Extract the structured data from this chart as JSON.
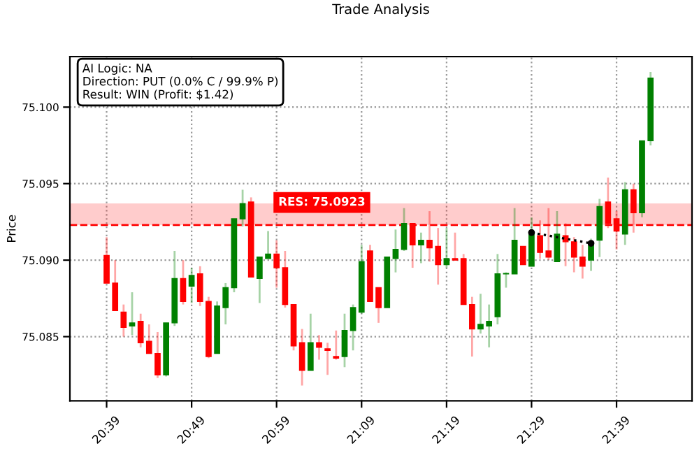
{
  "chart_data": {
    "type": "candlestick",
    "title": "Trade Analysis",
    "ylabel": "Price",
    "x": [
      20.65,
      20.6667,
      20.6833,
      20.7,
      20.7167,
      20.7333,
      20.75,
      20.7667,
      20.7833,
      20.8,
      20.8167,
      20.8333,
      20.85,
      20.8667,
      20.8833,
      20.9,
      20.9167,
      20.9333,
      20.95,
      20.9667,
      20.9833,
      21.0,
      21.0167,
      21.0333,
      21.05,
      21.0667,
      21.0833,
      21.1,
      21.1167,
      21.1333,
      21.15,
      21.1667,
      21.1833,
      21.2,
      21.2167,
      21.2333,
      21.25,
      21.2667,
      21.2833,
      21.3,
      21.3167,
      21.3333,
      21.35,
      21.3667,
      21.3833,
      21.4,
      21.4167,
      21.4333,
      21.45,
      21.4667,
      21.4833,
      21.5,
      21.5167,
      21.5333,
      21.55,
      21.5667,
      21.5833,
      21.6,
      21.6167,
      21.6333,
      21.65,
      21.6667,
      21.6833,
      21.7,
      21.7167
    ],
    "ohlc": [
      [
        75.0903,
        75.0915,
        75.0885,
        75.0885
      ],
      [
        75.0885,
        75.09,
        75.0867,
        75.0867
      ],
      [
        75.0866,
        75.0871,
        75.085,
        75.0856
      ],
      [
        75.0857,
        75.0879,
        75.0851,
        75.0859
      ],
      [
        75.086,
        75.0865,
        75.0843,
        75.0846
      ],
      [
        75.0847,
        75.0858,
        75.0839,
        75.0839
      ],
      [
        75.0839,
        75.0853,
        75.0823,
        75.0825
      ],
      [
        75.0825,
        75.0859,
        75.0824,
        75.0859
      ],
      [
        75.0859,
        75.0906,
        75.0857,
        75.0888
      ],
      [
        75.0888,
        75.09,
        75.0871,
        75.0873
      ],
      [
        75.0883,
        75.0895,
        75.0872,
        75.089
      ],
      [
        75.0891,
        75.0896,
        75.087,
        75.0873
      ],
      [
        75.0873,
        75.0876,
        75.0836,
        75.0837
      ],
      [
        75.0839,
        75.0873,
        75.0839,
        75.087
      ],
      [
        75.0869,
        75.0885,
        75.0858,
        75.0882
      ],
      [
        75.0882,
        75.0927,
        75.0879,
        75.0927
      ],
      [
        75.0927,
        75.0946,
        75.0922,
        75.0937
      ],
      [
        75.0938,
        75.0941,
        75.0889,
        75.0889
      ],
      [
        75.0888,
        75.0902,
        75.0872,
        75.0902
      ],
      [
        75.0901,
        75.0919,
        75.0901,
        75.0904
      ],
      [
        75.0904,
        75.0913,
        75.0882,
        75.0895
      ],
      [
        75.0895,
        75.0906,
        75.0869,
        75.0871
      ],
      [
        75.0871,
        75.0871,
        75.0841,
        75.0844
      ],
      [
        75.0846,
        75.0855,
        75.0818,
        75.0828
      ],
      [
        75.0828,
        75.0865,
        75.0828,
        75.0846
      ],
      [
        75.0846,
        75.0851,
        75.0835,
        75.0843
      ],
      [
        75.0842,
        75.0846,
        75.0825,
        75.0841
      ],
      [
        75.0837,
        75.0854,
        75.0835,
        75.0836
      ],
      [
        75.0837,
        75.0865,
        75.083,
        75.0854
      ],
      [
        75.0854,
        75.0871,
        75.0841,
        75.0869
      ],
      [
        75.0866,
        75.091,
        75.0865,
        75.0899
      ],
      [
        75.0906,
        75.091,
        75.0873,
        75.0873
      ],
      [
        75.0882,
        75.0882,
        75.0859,
        75.0869
      ],
      [
        75.0869,
        75.0902,
        75.0869,
        75.0902
      ],
      [
        75.0901,
        75.092,
        75.0892,
        75.0907
      ],
      [
        75.0907,
        75.0934,
        75.0906,
        75.0924
      ],
      [
        75.0924,
        75.0924,
        75.0895,
        75.091
      ],
      [
        75.091,
        75.0918,
        75.0898,
        75.0913
      ],
      [
        75.0913,
        75.0932,
        75.0899,
        75.0908
      ],
      [
        75.0909,
        75.0921,
        75.0884,
        75.0897
      ],
      [
        75.0897,
        75.0921,
        75.0895,
        75.0901
      ],
      [
        75.0901,
        75.0918,
        75.09,
        75.09
      ],
      [
        75.0901,
        75.0904,
        75.0871,
        75.0871
      ],
      [
        75.0871,
        75.0876,
        75.0837,
        75.0855
      ],
      [
        75.0855,
        75.0878,
        75.0852,
        75.0858
      ],
      [
        75.0857,
        75.0871,
        75.0843,
        75.086
      ],
      [
        75.0863,
        75.0904,
        75.0858,
        75.0891
      ],
      [
        75.0891,
        75.0892,
        75.0882,
        75.0891
      ],
      [
        75.0891,
        75.0934,
        75.0891,
        75.0913
      ],
      [
        75.0909,
        75.0909,
        75.0897,
        75.0897
      ],
      [
        75.0896,
        75.0928,
        75.0896,
        75.0918
      ],
      [
        75.0916,
        75.0926,
        75.0901,
        75.0905
      ],
      [
        75.0906,
        75.0934,
        75.09,
        75.0902
      ],
      [
        75.0899,
        75.0932,
        75.0899,
        75.0917
      ],
      [
        75.0916,
        75.0924,
        75.0896,
        75.0912
      ],
      [
        75.0912,
        75.0915,
        75.0892,
        75.0902
      ],
      [
        75.0902,
        75.091,
        75.0888,
        75.0896
      ],
      [
        75.09,
        75.0914,
        75.0893,
        75.0911
      ],
      [
        75.0913,
        75.094,
        75.0902,
        75.0935
      ],
      [
        75.0938,
        75.0954,
        75.0921,
        75.0924
      ],
      [
        75.0927,
        75.0932,
        75.0907,
        75.0919
      ],
      [
        75.0917,
        75.0951,
        75.091,
        75.0946
      ],
      [
        75.0946,
        75.095,
        75.0918,
        75.0931
      ],
      [
        75.0931,
        75.0978,
        75.0928,
        75.0978
      ],
      [
        75.0978,
        75.1023,
        75.0975,
        75.1019
      ]
    ],
    "series": [
      {
        "type": "line",
        "x": [
          21.4833,
          21.6
        ],
        "values": [
          75.0918,
          75.0911
        ],
        "color": "#000000",
        "line_style": "dotted",
        "marker": "circle"
      }
    ],
    "xlim": [
      20.578,
      21.798
    ],
    "xticks": [
      {
        "value": 20.65,
        "label": "20:39"
      },
      {
        "value": 20.8167,
        "label": "20:49"
      },
      {
        "value": 20.9833,
        "label": "20:59"
      },
      {
        "value": 21.15,
        "label": "21:09"
      },
      {
        "value": 21.3167,
        "label": "21:19"
      },
      {
        "value": 21.4833,
        "label": "21:29"
      },
      {
        "value": 21.65,
        "label": "21:39"
      }
    ],
    "ylim": [
      75.0808,
      75.1033
    ],
    "yticks": [
      {
        "value": 75.085,
        "label": "75.085"
      },
      {
        "value": 75.09,
        "label": "75.090"
      },
      {
        "value": 75.095,
        "label": "75.095"
      },
      {
        "value": 75.1,
        "label": "75.100"
      }
    ],
    "ref_lines": [
      {
        "axis": "y",
        "value": 75.0923,
        "label": "RES: 75.0923",
        "color": "#ff0000",
        "line_style": "dashed"
      }
    ],
    "bands": [
      {
        "axis": "y",
        "from": 75.0923,
        "to": 75.0937,
        "color": "#ff0000"
      }
    ],
    "annotations": [
      "AI Logic: NA\nDirection: PUT (0.0% C / 99.9% P)\nResult: WIN (Profit: $1.42)"
    ],
    "grid": true
  }
}
